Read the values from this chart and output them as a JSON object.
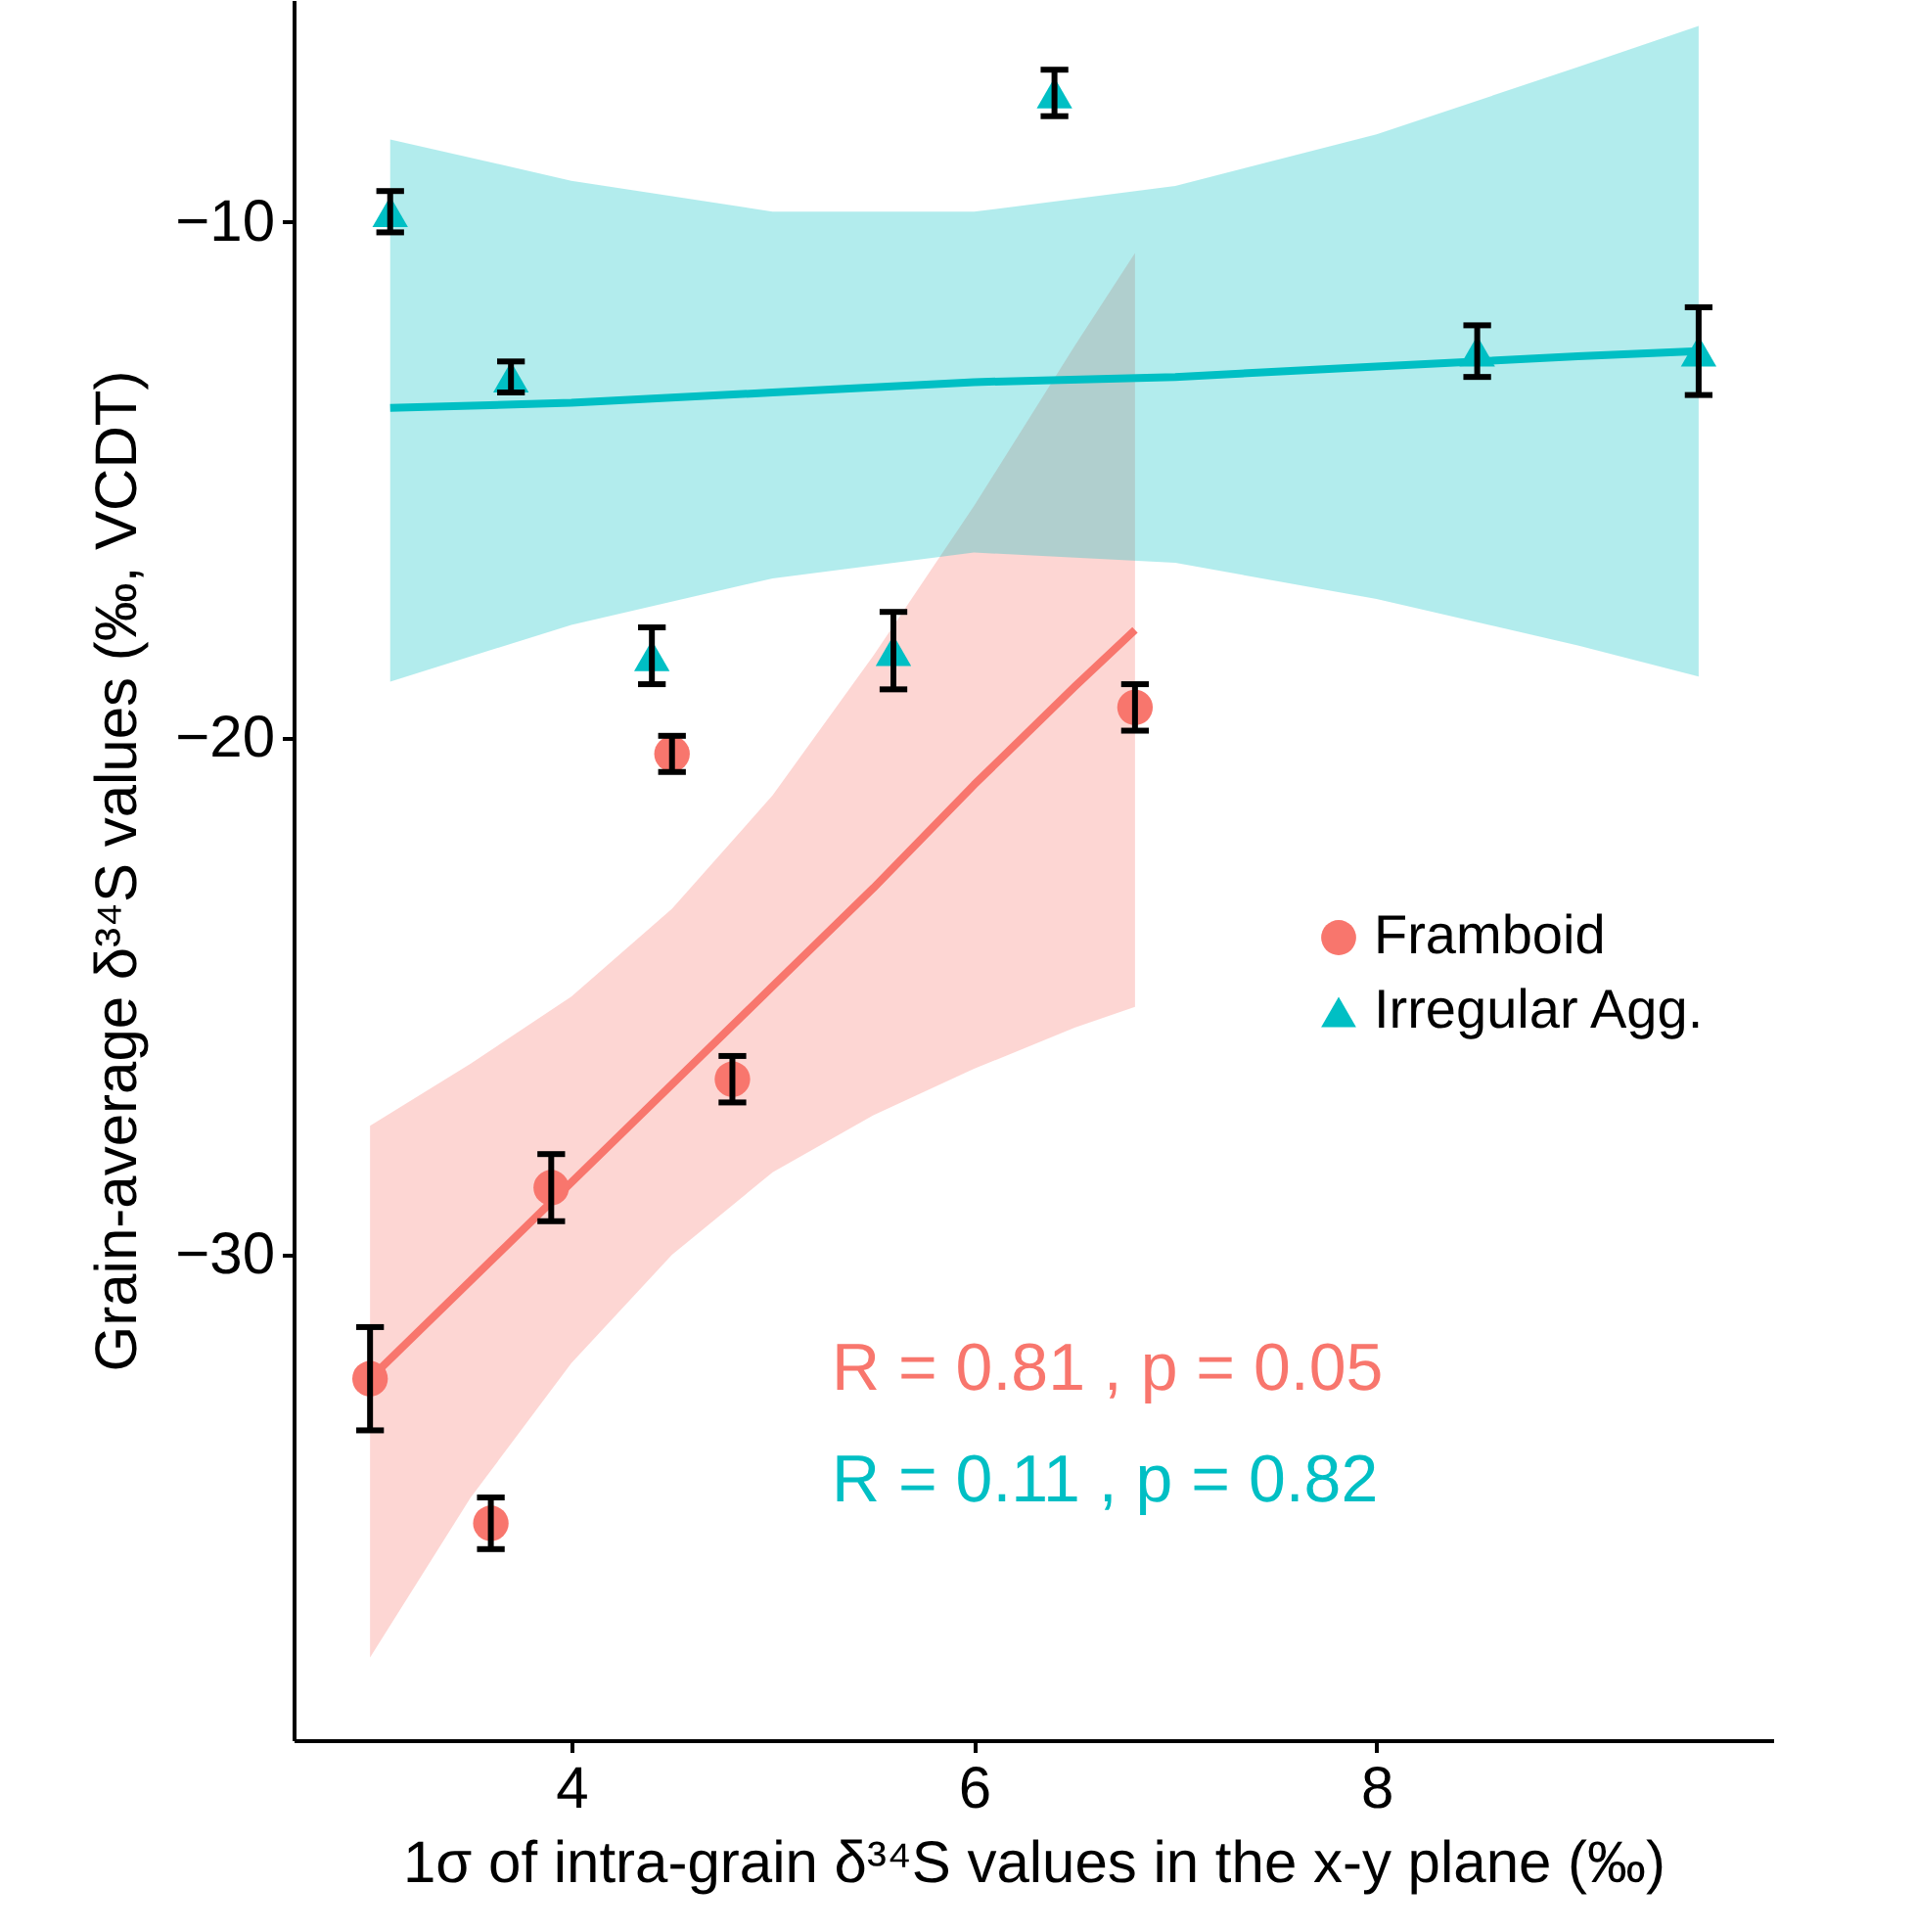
{
  "chart_data": {
    "type": "scatter",
    "xlabel": "1σ of intra-grain δ³⁴S values in the x-y plane (‰)",
    "ylabel": "Grain-average δ³⁴S values (‰, VCDT)",
    "xlim": [
      2.62,
      9.97
    ],
    "ylim": [
      -39.4,
      -5.7
    ],
    "xticks": [
      4,
      6,
      8
    ],
    "line_style": "solid",
    "yticks": [
      -30,
      -20,
      -10
    ],
    "grid": false,
    "legend": "right",
    "series": [
      {
        "name": "Framboid",
        "color": "#f8766d",
        "marker": "circle",
        "x": [
          3.0,
          3.6,
          3.9,
          4.5,
          4.8,
          6.8
        ],
        "values": [
          -32.4,
          -35.2,
          -28.7,
          -20.3,
          -26.6,
          -19.4
        ],
        "errors": [
          1.0,
          0.5,
          0.65,
          0.35,
          0.45,
          0.45
        ]
      },
      {
        "name": "Irregular Agg.",
        "color": "#00bfc4",
        "marker": "triangle",
        "x": [
          3.1,
          3.7,
          4.4,
          5.6,
          6.4,
          8.5,
          9.6
        ],
        "values": [
          -9.8,
          -13.0,
          -18.4,
          -18.3,
          -7.5,
          -12.5,
          -12.5
        ],
        "errors": [
          0.4,
          0.3,
          0.55,
          0.75,
          0.45,
          0.5,
          0.85
        ]
      },
      {
        "type": "line",
        "color": "#f8766d",
        "x": [
          3.0,
          3.5,
          4.0,
          4.5,
          5.0,
          5.5,
          6.0,
          6.5,
          6.8
        ],
        "values": [
          -32.4,
          -30.5,
          -28.6,
          -26.7,
          -24.8,
          -22.9,
          -20.9,
          -19.0,
          -17.9
        ],
        "lower": [
          -37.8,
          -34.7,
          -32.1,
          -30.0,
          -28.4,
          -27.3,
          -26.4,
          -25.6,
          -25.2
        ],
        "upper": [
          -27.5,
          -26.3,
          -25.0,
          -23.3,
          -21.1,
          -18.4,
          -15.5,
          -12.4,
          -10.6
        ]
      },
      {
        "type": "line",
        "color": "#00bfc4",
        "x": [
          3.1,
          4,
          5,
          6,
          7,
          8,
          9,
          9.6
        ],
        "values": [
          -13.6,
          -13.5,
          -13.3,
          -13.1,
          -13.0,
          -12.8,
          -12.6,
          -12.5
        ],
        "lower": [
          -18.9,
          -17.8,
          -16.9,
          -16.4,
          -16.6,
          -17.3,
          -18.2,
          -18.8
        ],
        "upper": [
          -8.4,
          -9.2,
          -9.8,
          -9.8,
          -9.3,
          -8.3,
          -7.0,
          -6.2
        ]
      }
    ],
    "annotations": [
      "R = 0.81 , p = 0.05",
      "R = 0.11 , p = 0.82"
    ]
  }
}
